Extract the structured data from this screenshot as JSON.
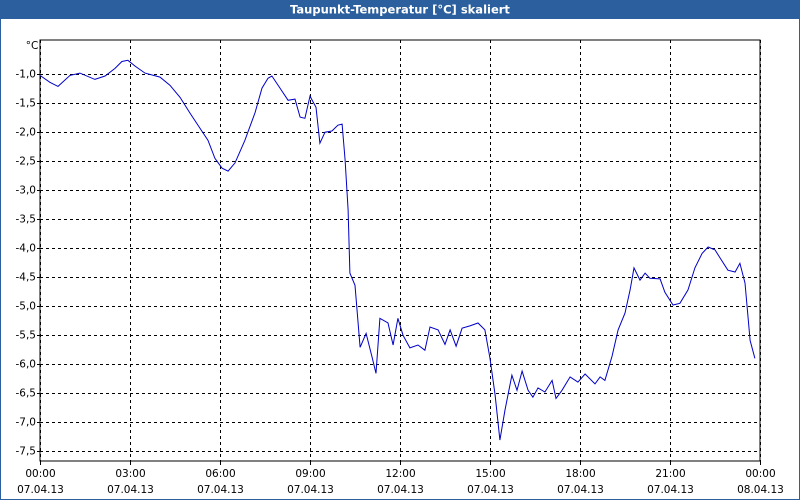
{
  "chart_data": {
    "type": "line",
    "title": "Taupunkt-Temperatur [°C] skaliert",
    "y_unit": "°C",
    "xlim": [
      0,
      24
    ],
    "xticks": [
      {
        "value": 0,
        "label": "00:00"
      },
      {
        "value": 3,
        "label": "03:00"
      },
      {
        "value": 6,
        "label": "06:00"
      },
      {
        "value": 9,
        "label": "09:00"
      },
      {
        "value": 12,
        "label": "12:00"
      },
      {
        "value": 15,
        "label": "15:00"
      },
      {
        "value": 18,
        "label": "18:00"
      },
      {
        "value": 21,
        "label": "21:00"
      },
      {
        "value": 24,
        "label": "00:00"
      }
    ],
    "xtick_dates": [
      "07.04.13",
      "07.04.13",
      "07.04.13",
      "07.04.13",
      "07.04.13",
      "07.04.13",
      "07.04.13",
      "07.04.13",
      "08.04.13"
    ],
    "ylim": [
      -7.67,
      -0.41
    ],
    "yticks": [
      {
        "value": -1,
        "label": "-1,0"
      },
      {
        "value": -1.5,
        "label": "-1,5"
      },
      {
        "value": -2,
        "label": "-2,0"
      },
      {
        "value": -2.5,
        "label": "-2,5"
      },
      {
        "value": -3,
        "label": "-3,0"
      },
      {
        "value": -3.5,
        "label": "-3,5"
      },
      {
        "value": -4,
        "label": "-4,0"
      },
      {
        "value": -4.5,
        "label": "-4,5"
      },
      {
        "value": -5,
        "label": "-5,0"
      },
      {
        "value": -5.5,
        "label": "-5,5"
      },
      {
        "value": -6,
        "label": "-6,0"
      },
      {
        "value": -6.5,
        "label": "-6,5"
      },
      {
        "value": -7,
        "label": "-7,0"
      },
      {
        "value": -7.5,
        "label": "-7,5"
      }
    ],
    "grid": true,
    "color": "#0000c8",
    "x": [
      0,
      0.33,
      0.6,
      1.0,
      1.33,
      1.83,
      2.17,
      2.5,
      2.73,
      2.93,
      3.17,
      3.5,
      4.0,
      4.33,
      4.67,
      5.0,
      5.33,
      5.6,
      5.83,
      6.07,
      6.27,
      6.5,
      6.83,
      7.17,
      7.4,
      7.6,
      7.73,
      8.0,
      8.27,
      8.5,
      8.67,
      8.83,
      9.0,
      9.2,
      9.33,
      9.5,
      9.73,
      9.93,
      10.07,
      10.17,
      10.27,
      10.33,
      10.5,
      10.67,
      10.87,
      11.07,
      11.2,
      11.33,
      11.6,
      11.77,
      11.93,
      12.1,
      12.33,
      12.6,
      12.83,
      13.0,
      13.27,
      13.5,
      13.67,
      13.87,
      14.07,
      14.33,
      14.6,
      14.83,
      15.0,
      15.17,
      15.33,
      15.5,
      15.73,
      15.9,
      16.07,
      16.27,
      16.43,
      16.6,
      16.83,
      17.07,
      17.2,
      17.4,
      17.67,
      17.93,
      18.17,
      18.5,
      18.67,
      18.83,
      19.07,
      19.27,
      19.5,
      19.67,
      19.8,
      20.0,
      20.17,
      20.33,
      20.67,
      20.83,
      21.1,
      21.33,
      21.6,
      21.83,
      22.07,
      22.27,
      22.5,
      22.67,
      22.93,
      23.17,
      23.33,
      23.5,
      23.67,
      23.83
    ],
    "values": [
      -1.02,
      -1.14,
      -1.21,
      -1.02,
      -0.98,
      -1.09,
      -1.03,
      -0.9,
      -0.78,
      -0.76,
      -0.86,
      -0.98,
      -1.05,
      -1.19,
      -1.4,
      -1.67,
      -1.93,
      -2.14,
      -2.45,
      -2.62,
      -2.67,
      -2.53,
      -2.14,
      -1.66,
      -1.24,
      -1.07,
      -1.03,
      -1.24,
      -1.45,
      -1.43,
      -1.74,
      -1.76,
      -1.38,
      -1.57,
      -2.19,
      -2.0,
      -1.98,
      -1.88,
      -1.86,
      -2.48,
      -3.34,
      -4.43,
      -4.64,
      -5.71,
      -5.47,
      -5.88,
      -6.16,
      -5.21,
      -5.29,
      -5.67,
      -5.21,
      -5.5,
      -5.72,
      -5.67,
      -5.76,
      -5.36,
      -5.41,
      -5.66,
      -5.41,
      -5.69,
      -5.38,
      -5.34,
      -5.29,
      -5.41,
      -5.9,
      -6.53,
      -7.31,
      -6.79,
      -6.19,
      -6.45,
      -6.12,
      -6.45,
      -6.57,
      -6.41,
      -6.48,
      -6.28,
      -6.59,
      -6.45,
      -6.22,
      -6.31,
      -6.17,
      -6.34,
      -6.22,
      -6.28,
      -5.86,
      -5.41,
      -5.12,
      -4.72,
      -4.34,
      -4.55,
      -4.43,
      -4.52,
      -4.53,
      -4.76,
      -4.98,
      -4.95,
      -4.72,
      -4.34,
      -4.09,
      -3.98,
      -4.03,
      -4.17,
      -4.38,
      -4.41,
      -4.26,
      -4.6,
      -5.59,
      -5.9
    ]
  }
}
